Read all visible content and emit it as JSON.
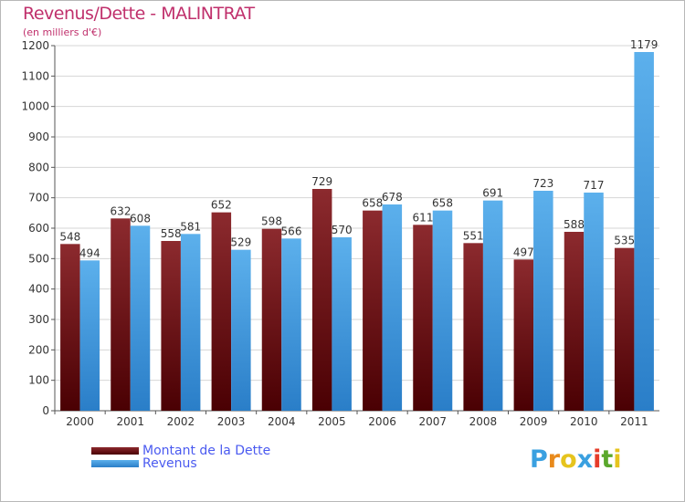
{
  "title": "Revenus/Dette - MALINTRAT",
  "subtitle": "(en milliers d'€)",
  "legend": [
    {
      "label": "Montant de la Dette",
      "color": "#7a0f14"
    },
    {
      "label": "Revenus",
      "color": "#3e9be4"
    }
  ],
  "logo": {
    "text": "Proxiti",
    "letter_colors": [
      "#3aa0e0",
      "#e88a1c",
      "#e6c41e",
      "#3aa0e0",
      "#e63c2a",
      "#5aa82c",
      "#e6c41e"
    ]
  },
  "colors": {
    "debt": "#7a0f14",
    "revenue": "#3e9be4",
    "title": "#c0306c"
  },
  "chart_data": {
    "type": "bar",
    "title": "Revenus/Dette - MALINTRAT",
    "ylabel": "(en milliers d'€)",
    "xlabel": "",
    "categories": [
      "2000",
      "2001",
      "2002",
      "2003",
      "2004",
      "2005",
      "2006",
      "2007",
      "2008",
      "2009",
      "2010",
      "2011"
    ],
    "series": [
      {
        "name": "Montant de la Dette",
        "values": [
          548,
          632,
          558,
          652,
          598,
          729,
          658,
          611,
          551,
          497,
          588,
          535
        ]
      },
      {
        "name": "Revenus",
        "values": [
          494,
          608,
          581,
          529,
          566,
          570,
          678,
          658,
          691,
          723,
          717,
          1179
        ]
      }
    ],
    "ylim": [
      0,
      1200
    ],
    "yticks": [
      0,
      100,
      200,
      300,
      400,
      500,
      600,
      700,
      800,
      900,
      1000,
      1100,
      1200
    ],
    "grid": true,
    "legend_position": "bottom-left"
  }
}
